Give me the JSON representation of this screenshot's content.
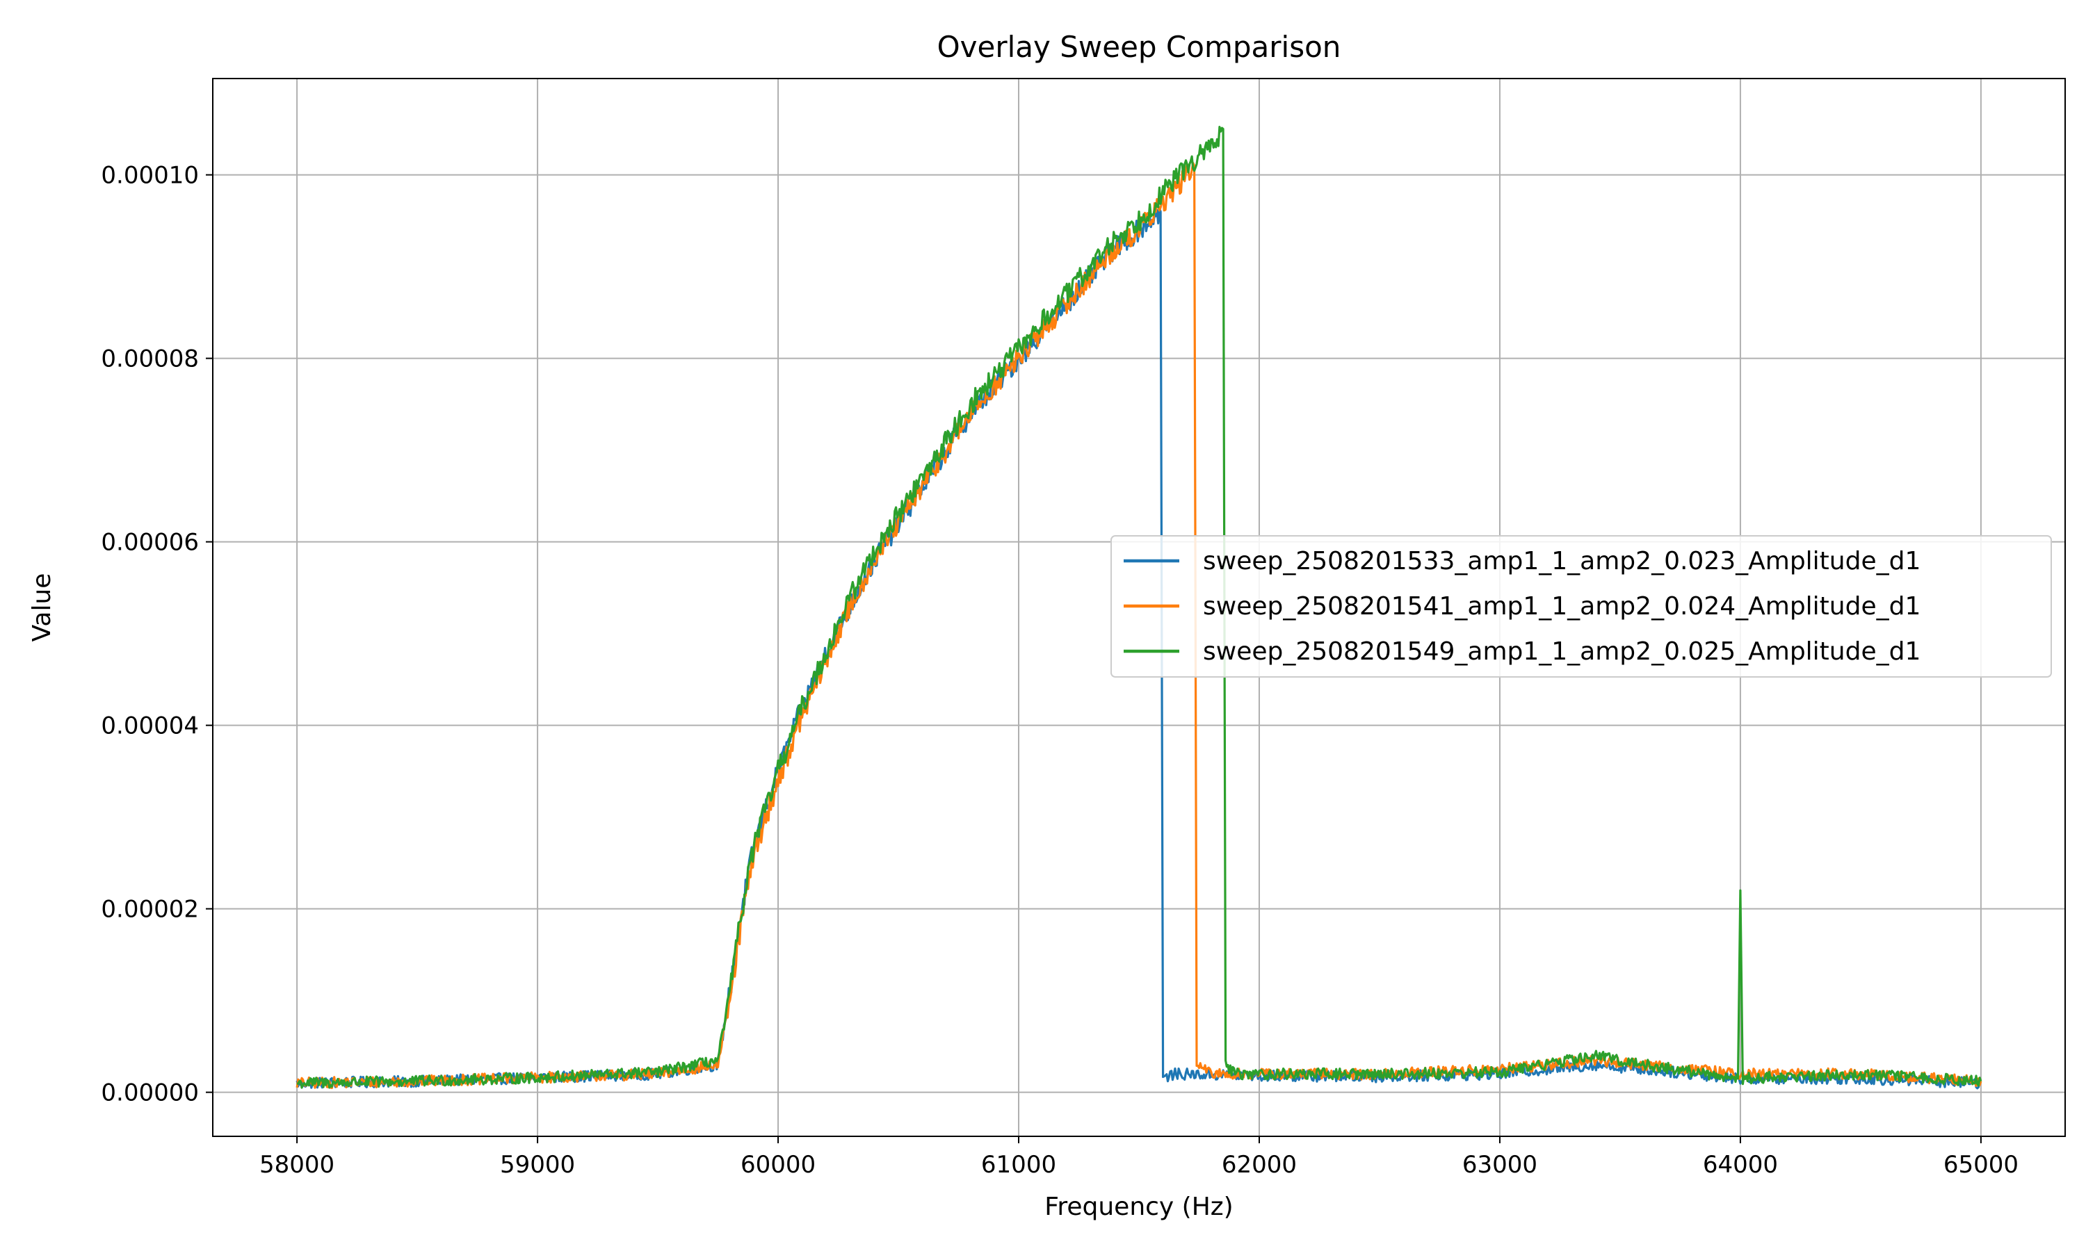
{
  "chart_data": {
    "type": "line",
    "title": "Overlay Sweep Comparison",
    "xlabel": "Frequency (Hz)",
    "ylabel": "Value",
    "xlim": [
      57650,
      65350
    ],
    "ylim": [
      -4.8e-06,
      0.0001105
    ],
    "xticks": [
      58000,
      59000,
      60000,
      61000,
      62000,
      63000,
      64000,
      65000
    ],
    "xtick_labels": [
      "58000",
      "59000",
      "60000",
      "61000",
      "62000",
      "63000",
      "64000",
      "65000"
    ],
    "yticks": [
      0,
      2e-05,
      4e-05,
      6e-05,
      8e-05,
      0.0001
    ],
    "ytick_labels": [
      "0.00000",
      "0.00002",
      "0.00004",
      "0.00006",
      "0.00008",
      "0.00010"
    ],
    "grid": true,
    "legend_position": "center-right",
    "series": [
      {
        "name": "sweep_2508201533_amp1_1_amp2_0.023_Amplitude_d1",
        "color": "#1f77b4",
        "x": [
          58000,
          58500,
          59000,
          59500,
          59750,
          59800,
          59850,
          59900,
          60000,
          60100,
          60200,
          60300,
          60400,
          60500,
          60600,
          60700,
          60800,
          60900,
          61000,
          61100,
          61200,
          61300,
          61400,
          61500,
          61590,
          61600,
          61650,
          62000,
          62500,
          63000,
          63400,
          63600,
          64000,
          64500,
          65000
        ],
        "y": [
          1e-06,
          1.2e-06,
          1.6e-06,
          2e-06,
          3e-06,
          1.1e-05,
          2e-05,
          2.7e-05,
          3.5e-05,
          4.2e-05,
          4.8e-05,
          5.3e-05,
          5.8e-05,
          6.2e-05,
          6.6e-05,
          7e-05,
          7.4e-05,
          7.7e-05,
          8e-05,
          8.3e-05,
          8.6e-05,
          8.9e-05,
          9.2e-05,
          9.4e-05,
          9.6e-05,
          1.5e-06,
          2e-06,
          1.8e-06,
          1.7e-06,
          2e-06,
          3e-06,
          2.5e-06,
          1.5e-06,
          1.5e-06,
          1e-06
        ]
      },
      {
        "name": "sweep_2508201541_amp1_1_amp2_0.024_Amplitude_d1",
        "color": "#ff7f0e",
        "x": [
          58000,
          58500,
          59000,
          59500,
          59750,
          59800,
          59850,
          59900,
          60000,
          60100,
          60200,
          60300,
          60400,
          60500,
          60600,
          60700,
          60800,
          60900,
          61000,
          61100,
          61200,
          61300,
          61400,
          61500,
          61600,
          61700,
          61730,
          61740,
          61800,
          62000,
          62500,
          63000,
          63400,
          63600,
          64000,
          64500,
          65000
        ],
        "y": [
          1e-06,
          1.2e-06,
          1.6e-06,
          2e-06,
          3e-06,
          1e-05,
          1.9e-05,
          2.6e-05,
          3.4e-05,
          4.1e-05,
          4.7e-05,
          5.3e-05,
          5.8e-05,
          6.2e-05,
          6.6e-05,
          7e-05,
          7.4e-05,
          7.7e-05,
          8e-05,
          8.3e-05,
          8.6e-05,
          8.9e-05,
          9.2e-05,
          9.4e-05,
          9.7e-05,
          0.0001,
          0.000101,
          3e-06,
          2e-06,
          2e-06,
          2e-06,
          2.5e-06,
          3.5e-06,
          3e-06,
          2e-06,
          2e-06,
          1.2e-06
        ]
      },
      {
        "name": "sweep_2508201549_amp1_1_amp2_0.025_Amplitude_d1",
        "color": "#2ca02c",
        "x": [
          58000,
          58500,
          59000,
          59500,
          59750,
          59800,
          59850,
          59900,
          60000,
          60100,
          60200,
          60300,
          60400,
          60500,
          60600,
          60700,
          60800,
          60900,
          61000,
          61100,
          61200,
          61300,
          61400,
          61500,
          61600,
          61700,
          61800,
          61850,
          61860,
          61900,
          62000,
          62500,
          63000,
          63400,
          63600,
          63990,
          64000,
          64010,
          64500,
          65000
        ],
        "y": [
          1e-06,
          1.2e-06,
          1.6e-06,
          2.2e-06,
          3.5e-06,
          1.1e-05,
          2e-05,
          2.7e-05,
          3.5e-05,
          4.2e-05,
          4.8e-05,
          5.4e-05,
          5.9e-05,
          6.3e-05,
          6.7e-05,
          7.1e-05,
          7.5e-05,
          7.8e-05,
          8.1e-05,
          8.4e-05,
          8.7e-05,
          9e-05,
          9.3e-05,
          9.5e-05,
          9.8e-05,
          0.000101,
          0.000103,
          0.000105,
          3e-06,
          2e-06,
          2e-06,
          2e-06,
          2.2e-06,
          4e-06,
          3e-06,
          1.5e-06,
          2.2e-05,
          1.5e-06,
          2e-06,
          1.2e-06
        ]
      }
    ]
  }
}
